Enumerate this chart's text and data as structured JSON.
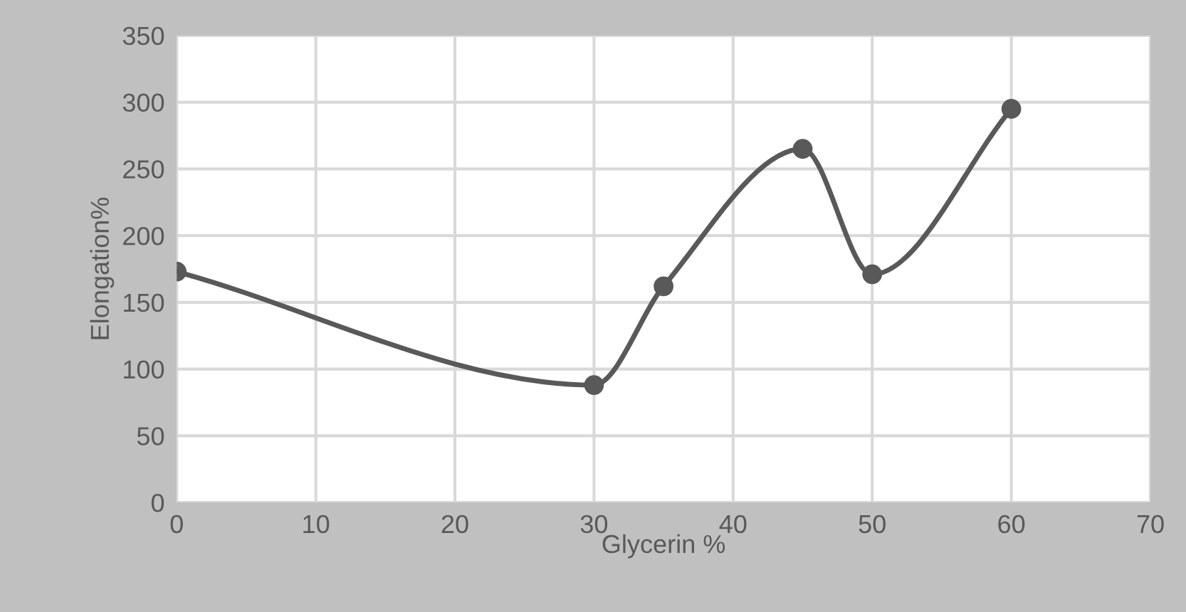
{
  "chart_data": {
    "type": "line",
    "xlabel": "Glycerin %",
    "ylabel": "Elongation%",
    "x": [
      0,
      30,
      35,
      45,
      50,
      60
    ],
    "series": [
      {
        "color": "#595959",
        "values": [
          173,
          88,
          162,
          265,
          171,
          295
        ]
      }
    ],
    "xlim": [
      0,
      70
    ],
    "xticks": [
      0,
      10,
      20,
      30,
      40,
      50,
      60,
      70
    ],
    "ylim": [
      0,
      350
    ],
    "yticks": [
      0,
      50,
      100,
      150,
      200,
      250,
      300,
      350
    ],
    "grid": true,
    "marker": "circle",
    "line_style": "solid",
    "legend": false
  }
}
